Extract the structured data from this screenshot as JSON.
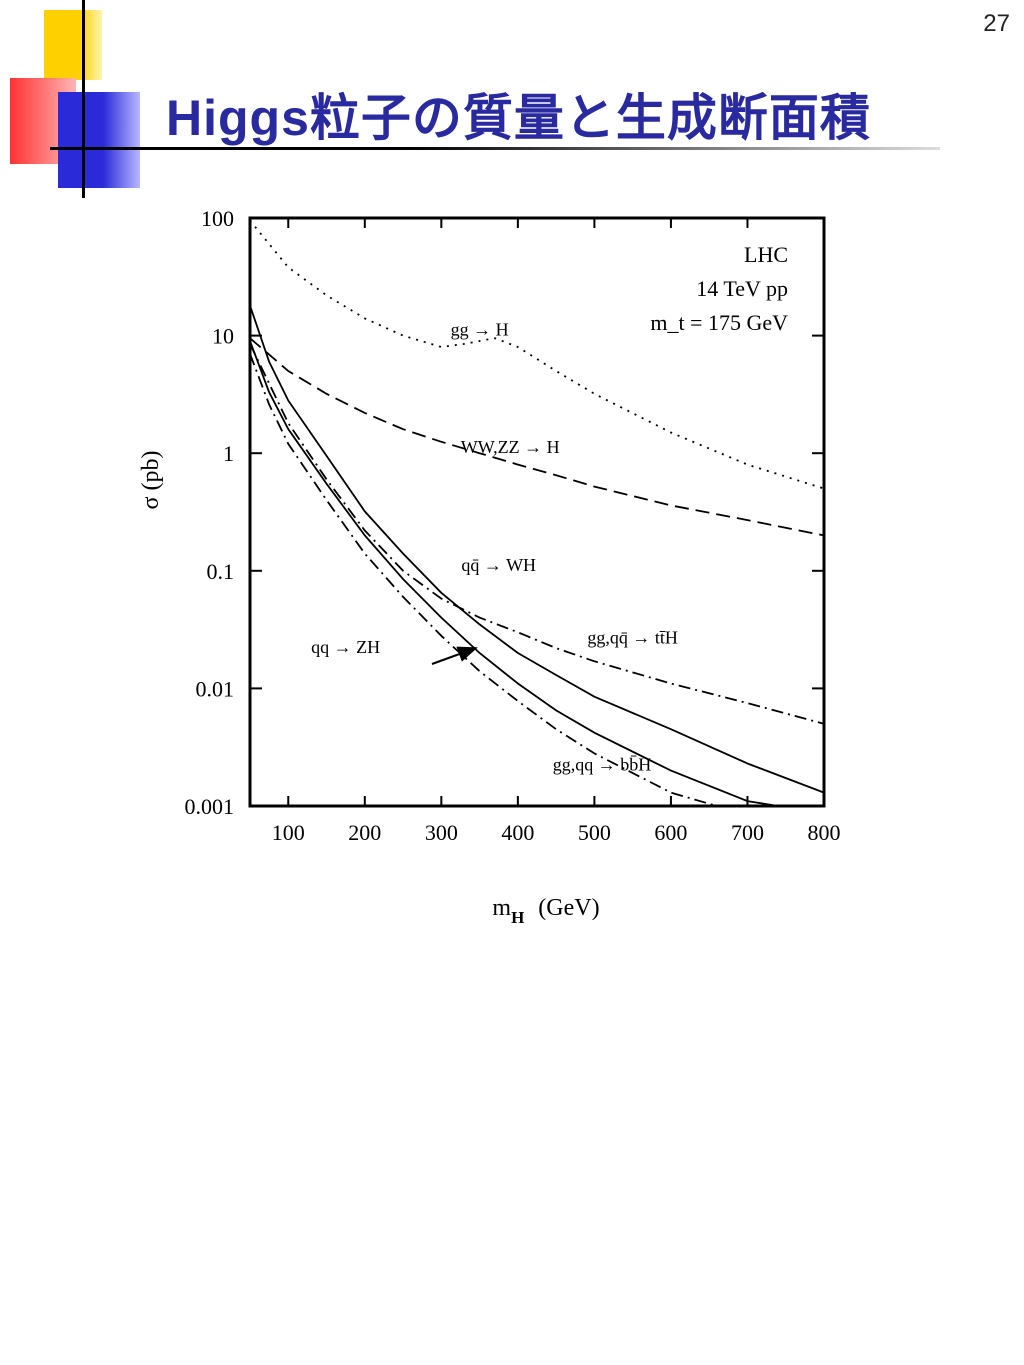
{
  "slide": {
    "page_number": "27",
    "title": "Higgs粒子の質量と生成断面積"
  },
  "chart_data": {
    "type": "line",
    "xlabel": "m_H (GeV)",
    "xlabel_main": "m",
    "xlabel_sub": "H",
    "xlabel_unit": "(GeV)",
    "ylabel": "σ (pb)",
    "y_scale": "log",
    "xlim": [
      50,
      800
    ],
    "ylim": [
      0.001,
      100
    ],
    "x_ticks": [
      100,
      200,
      300,
      400,
      500,
      600,
      700,
      800
    ],
    "x_tick_labels": [
      "100",
      "200",
      "300",
      "400",
      "500",
      "600",
      "700",
      "800"
    ],
    "y_ticks": [
      0.001,
      0.01,
      0.1,
      1,
      10,
      100
    ],
    "y_tick_labels": [
      "0.001",
      "0.01",
      "0.1",
      "1",
      "10",
      "100"
    ],
    "info_text": [
      "LHC",
      "14 TeV   pp",
      "m_t = 175 GeV"
    ],
    "series": [
      {
        "name": "gg → H",
        "style": "dotted",
        "x": [
          50,
          100,
          150,
          200,
          250,
          300,
          330,
          370,
          400,
          450,
          500,
          600,
          700,
          800
        ],
        "y": [
          95,
          38,
          22,
          14,
          10,
          8.0,
          8.5,
          9.5,
          8.0,
          5.0,
          3.2,
          1.5,
          0.8,
          0.5
        ]
      },
      {
        "name": "WW,ZZ → H",
        "style": "dashed",
        "x": [
          50,
          100,
          150,
          200,
          250,
          300,
          350,
          400,
          450,
          500,
          600,
          700,
          800
        ],
        "y": [
          9.5,
          5.0,
          3.2,
          2.2,
          1.6,
          1.25,
          1.0,
          0.8,
          0.65,
          0.52,
          0.36,
          0.27,
          0.2
        ]
      },
      {
        "name": "qq̄ → WH",
        "style": "solid",
        "x": [
          50,
          75,
          100,
          150,
          200,
          250,
          300,
          350,
          400,
          450,
          500,
          600,
          700,
          800
        ],
        "y": [
          18,
          6.0,
          2.8,
          0.95,
          0.32,
          0.14,
          0.065,
          0.035,
          0.02,
          0.013,
          0.0085,
          0.0045,
          0.0023,
          0.0013
        ]
      },
      {
        "name": "qq → ZH",
        "style": "solid",
        "x": [
          50,
          75,
          100,
          150,
          200,
          250,
          300,
          350,
          400,
          450,
          500,
          600,
          700,
          740
        ],
        "y": [
          9.0,
          3.3,
          1.6,
          0.55,
          0.2,
          0.085,
          0.04,
          0.02,
          0.011,
          0.0065,
          0.0042,
          0.002,
          0.0011,
          0.001
        ]
      },
      {
        "name": "gg,qq̄ → tt̄H",
        "style": "dashdot",
        "x": [
          50,
          100,
          150,
          200,
          250,
          300,
          350,
          400,
          450,
          500,
          600,
          700,
          800
        ],
        "y": [
          8.5,
          1.8,
          0.6,
          0.22,
          0.1,
          0.058,
          0.04,
          0.03,
          0.022,
          0.017,
          0.011,
          0.0075,
          0.005
        ]
      },
      {
        "name": "gg,qq → bb̄H",
        "style": "dashdot",
        "x": [
          50,
          75,
          100,
          150,
          200,
          250,
          300,
          350,
          400,
          450,
          500,
          600,
          660
        ],
        "y": [
          7.0,
          2.6,
          1.2,
          0.4,
          0.14,
          0.06,
          0.028,
          0.014,
          0.0078,
          0.0045,
          0.0028,
          0.0013,
          0.001
        ]
      }
    ],
    "annotations": [
      {
        "text": "gg → H",
        "x": 350,
        "y": 10
      },
      {
        "text": "WW,ZZ → H",
        "x": 390,
        "y": 1.0
      },
      {
        "text": "qq̄ → WH",
        "x": 375,
        "y": 0.1
      },
      {
        "text": "gg,qq̄ → tt̄H",
        "x": 550,
        "y": 0.024
      },
      {
        "text": "qq → ZH",
        "x": 175,
        "y": 0.02
      },
      {
        "text": "gg,qq → bb̄H",
        "x": 510,
        "y": 0.002
      }
    ]
  }
}
